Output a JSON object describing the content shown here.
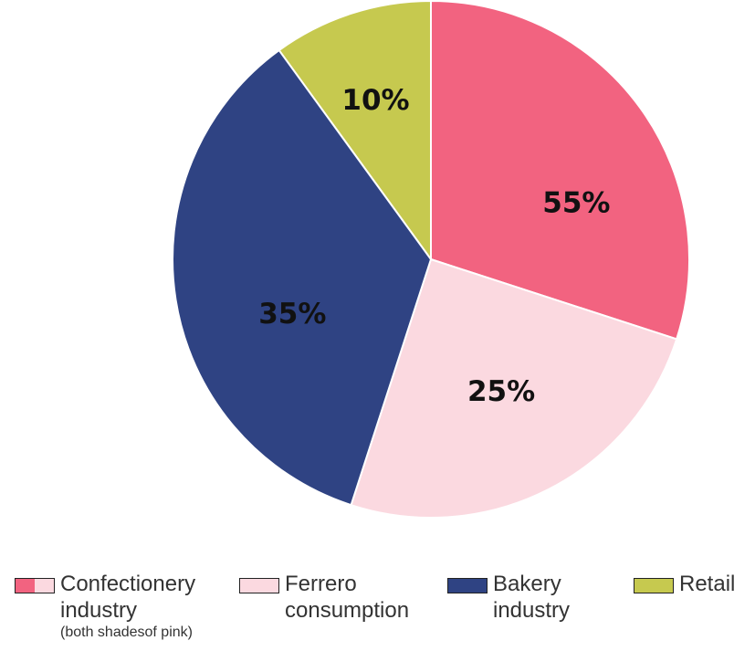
{
  "chart_data": {
    "type": "pie",
    "slices": [
      {
        "label": "10%",
        "value": 10,
        "color": "#c6c94f"
      },
      {
        "label": "55%",
        "value": 30,
        "color": "#f26380"
      },
      {
        "label": "25%",
        "value": 25,
        "color": "#fbd9e0"
      },
      {
        "label": "35%",
        "value": 35,
        "color": "#2f4383"
      }
    ],
    "legend": [
      {
        "name": "Confectionery",
        "line2": "industry",
        "note": "(both shadesof pink)",
        "colors": [
          "#f26380",
          "#fbd9e0"
        ]
      },
      {
        "name": "Ferrero",
        "line2": "consumption",
        "colors": [
          "#fbd9e0"
        ]
      },
      {
        "name": "Bakery",
        "line2": "industry",
        "colors": [
          "#2f4383"
        ]
      },
      {
        "name": "Retail",
        "colors": [
          "#c6c94f"
        ]
      }
    ],
    "legend_position": "bottom"
  }
}
